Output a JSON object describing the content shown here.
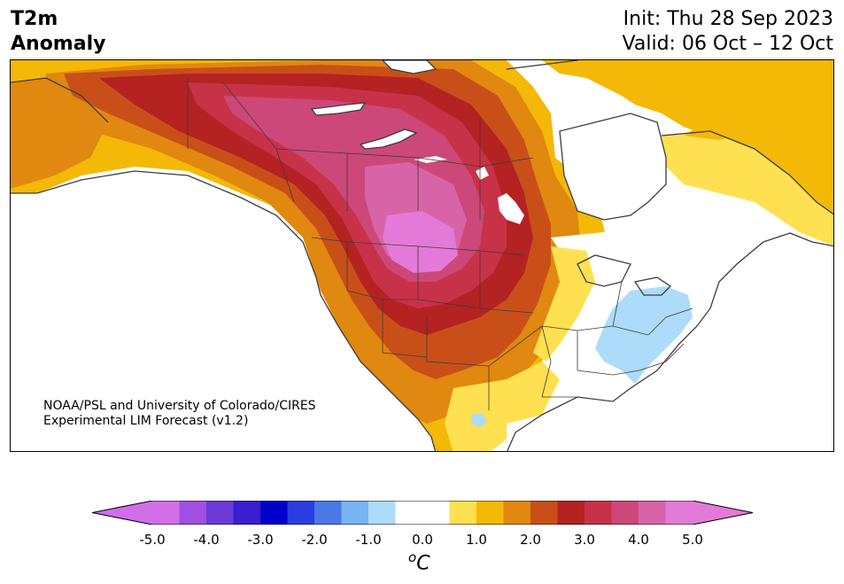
{
  "title": {
    "left_line1": "T2m",
    "left_line2": "Anomaly",
    "init": "Init: Thu 28 Sep 2023",
    "valid": "Valid: 06 Oct – 12 Oct"
  },
  "credit": {
    "line1": "NOAA/PSL and University of Colorado/CIRES",
    "line2": "Experimental LIM Forecast (v1.2)"
  },
  "colorbar": {
    "unit_sup": "o",
    "unit": "C",
    "ticks": [
      "-5.0",
      "-4.0",
      "-3.0",
      "-2.0",
      "-1.0",
      "0.0",
      "1.0",
      "2.0",
      "3.0",
      "4.0",
      "5.0"
    ],
    "levels": [
      -5.0,
      -4.5,
      -4.0,
      -3.5,
      -3.0,
      -2.5,
      -2.0,
      -1.5,
      -1.0,
      -0.5,
      0.5,
      1.0,
      1.5,
      2.0,
      2.5,
      3.0,
      3.5,
      4.0,
      4.5,
      5.0
    ],
    "colors": [
      "#d16ee8",
      "#a050e0",
      "#6a3ad8",
      "#3a1ed0",
      "#0000c8",
      "#2a3ee0",
      "#4a78e6",
      "#78b4f0",
      "#acdcfa",
      "#ffffff",
      "#ffe050",
      "#f4b806",
      "#e08810",
      "#c85018",
      "#b42222",
      "#c83248",
      "#cc4878",
      "#d864a8",
      "#e47ad8"
    ],
    "extend_low_color": "#d16ee8",
    "extend_high_color": "#e47ad8"
  }
}
